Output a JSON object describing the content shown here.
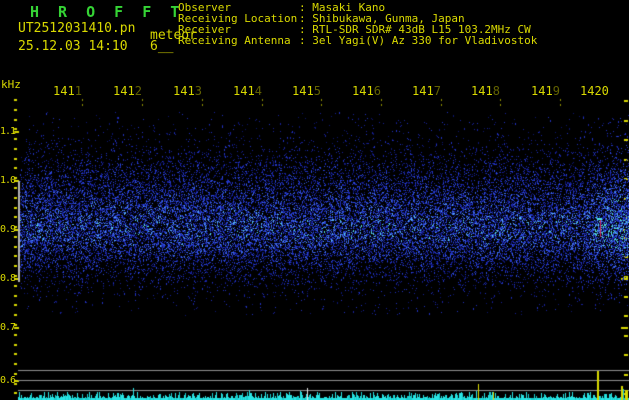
{
  "window": {
    "title": "H R O F F T"
  },
  "header": {
    "filename": "UT2512031410.pn",
    "session_label": "meteor",
    "datetime": "25.12.03 14:10",
    "echo_count": "6__",
    "colon": ": ",
    "info_rows": [
      {
        "label": "Observer",
        "value": "Masaki Kano"
      },
      {
        "label": "Receiving Location",
        "value": "Shibukawa, Gunma, Japan"
      },
      {
        "label": "Receiver",
        "value": "RTL-SDR SDR# 43dB L15 103.2MHz CW"
      },
      {
        "label": "Receiving Antenna",
        "value": "3el Yagi(V) Az 330 for Vladivostok"
      }
    ]
  },
  "axes": {
    "freq_unit_label": "kHz",
    "freq_tick_labels": [
      "1.1",
      "1.0",
      "0.9",
      "0.8",
      "0.7",
      "0.6"
    ],
    "time_tick_labels": [
      "1411",
      "1412",
      "1413",
      "1414",
      "1415",
      "1416",
      "1417",
      "1418",
      "1419",
      "1420"
    ]
  },
  "spectrogram": {
    "noise_band_khz": [
      0.8,
      1.0
    ],
    "marked_band_khz": [
      0.8,
      1.0
    ]
  },
  "colors": {
    "background": "#000000",
    "title_green": "#35d435",
    "text_yellow": "#d9d900",
    "dim_yellow": "#8f8f00",
    "grid_gray": "#909090",
    "band_bar_gray": "#b4b4b4",
    "level_cyan": "#2ae4e4",
    "level_cyan_dark": "#19cfcf",
    "spike_white": "#e0e0e0",
    "echo_marker_red": "#cf2a60",
    "echo_marker_cap_cyan": "#48e8e8",
    "noise_palette": [
      "#0e1670",
      "#18209c",
      "#2133c0",
      "#2c49dd",
      "#3f6ce8",
      "#55aaff",
      "#56e2d6"
    ]
  }
}
